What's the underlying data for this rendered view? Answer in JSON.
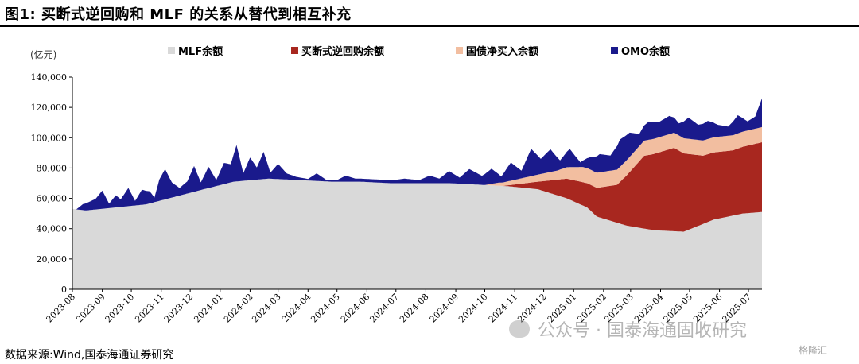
{
  "figure": {
    "title": "图1:  买断式逆回购和 MLF 的关系从替代到相互补充",
    "unit": "(亿元)",
    "source": "数据来源:Wind,国泰海通证券研究",
    "watermark": "公众号 · 国泰海通固收研究",
    "logo_text": "格隆汇"
  },
  "colors": {
    "mlf": "#d9d9d9",
    "outright": "#a8271f",
    "treasury": "#f2bea0",
    "omo": "#1a1a8c"
  },
  "chart_data": {
    "type": "area",
    "stacked": true,
    "ylabel": "(亿元)",
    "ylim": [
      0,
      140000
    ],
    "yticks": [
      0,
      20000,
      40000,
      60000,
      80000,
      100000,
      120000,
      140000
    ],
    "ytick_labels": [
      "0",
      "20,000",
      "40,000",
      "60,000",
      "80,000",
      "100,000",
      "120,000",
      "140,000"
    ],
    "xticks": [
      "2023-08",
      "2023-09",
      "2023-10",
      "2023-11",
      "2023-12",
      "2024-01",
      "2024-02",
      "2024-03",
      "2024-04",
      "2024-05",
      "2024-06",
      "2024-07",
      "2024-08",
      "2024-09",
      "2024-10",
      "2024-11",
      "2024-12",
      "2025-01",
      "2025-02",
      "2025-03",
      "2025-04",
      "2025-05",
      "2025-06",
      "2025-07"
    ],
    "x_start": "2023-08-01",
    "x_end": "2025-07-15",
    "legend_placement": "top",
    "series": [
      {
        "name": "MLF余额",
        "key": "mlf",
        "x": [
          "2023-08-01",
          "2023-08-15",
          "2023-09-15",
          "2023-10-16",
          "2023-11-15",
          "2023-12-15",
          "2024-01-15",
          "2024-02-20",
          "2024-03-25",
          "2024-04-25",
          "2024-05-25",
          "2024-06-25",
          "2024-07-25",
          "2024-08-26",
          "2024-09-25",
          "2024-10-25",
          "2024-11-25",
          "2024-12-25",
          "2025-01-15",
          "2025-01-25",
          "2025-02-25",
          "2025-03-25",
          "2025-04-25",
          "2025-05-26",
          "2025-06-25",
          "2025-07-15"
        ],
        "values": [
          53000,
          52000,
          54000,
          56000,
          61000,
          66000,
          71000,
          73000,
          72000,
          71000,
          71000,
          70000,
          70000,
          70000,
          69000,
          68000,
          66000,
          60000,
          54000,
          48000,
          42000,
          39000,
          38000,
          46000,
          50000,
          51000
        ]
      },
      {
        "name": "买断式逆回购余额",
        "key": "outright",
        "x": [
          "2023-08-01",
          "2024-10-20",
          "2024-10-28",
          "2024-11-25",
          "2024-12-25",
          "2025-01-15",
          "2025-02-15",
          "2025-03-15",
          "2025-04-15",
          "2025-05-15",
          "2025-06-15",
          "2025-07-15"
        ],
        "values": [
          0,
          0,
          1000,
          5000,
          13000,
          16000,
          25000,
          48000,
          55000,
          45000,
          43000,
          46000
        ]
      },
      {
        "name": "国债净买入余额",
        "key": "treasury",
        "x": [
          "2023-08-01",
          "2024-10-01",
          "2024-10-15",
          "2024-11-15",
          "2024-12-15",
          "2025-01-10",
          "2025-02-15",
          "2025-03-15",
          "2025-04-15",
          "2025-05-15",
          "2025-06-15",
          "2025-07-15"
        ],
        "values": [
          0,
          0,
          2000,
          4000,
          6000,
          10000,
          10000,
          10000,
          10000,
          10000,
          10000,
          10000
        ]
      },
      {
        "name": "OMO余额",
        "key": "omo",
        "x": [
          "2023-08-01",
          "2023-08-05",
          "2023-08-12",
          "2023-08-25",
          "2023-09-01",
          "2023-09-08",
          "2023-09-15",
          "2023-09-20",
          "2023-09-28",
          "2023-10-05",
          "2023-10-12",
          "2023-10-20",
          "2023-10-25",
          "2023-10-30",
          "2023-11-05",
          "2023-11-12",
          "2023-11-20",
          "2023-11-28",
          "2023-12-05",
          "2023-12-12",
          "2023-12-20",
          "2023-12-28",
          "2024-01-05",
          "2024-01-12",
          "2024-01-18",
          "2024-01-25",
          "2024-02-01",
          "2024-02-08",
          "2024-02-15",
          "2024-02-22",
          "2024-03-01",
          "2024-03-10",
          "2024-03-20",
          "2024-04-01",
          "2024-04-10",
          "2024-04-20",
          "2024-05-01",
          "2024-05-10",
          "2024-05-20",
          "2024-06-01",
          "2024-06-15",
          "2024-06-28",
          "2024-07-10",
          "2024-07-25",
          "2024-08-05",
          "2024-08-15",
          "2024-08-25",
          "2024-09-05",
          "2024-09-15",
          "2024-09-28",
          "2024-10-08",
          "2024-10-18",
          "2024-10-28",
          "2024-11-08",
          "2024-11-18",
          "2024-11-28",
          "2024-12-08",
          "2024-12-18",
          "2024-12-28",
          "2025-01-08",
          "2025-01-18",
          "2025-01-28",
          "2025-02-08",
          "2025-02-18",
          "2025-02-28",
          "2025-03-10",
          "2025-03-20",
          "2025-03-30",
          "2025-04-10",
          "2025-04-20",
          "2025-04-30",
          "2025-05-10",
          "2025-05-20",
          "2025-05-30",
          "2025-06-10",
          "2025-06-20",
          "2025-06-30",
          "2025-07-08",
          "2025-07-15"
        ],
        "values": [
          0,
          0,
          4000,
          7000,
          12000,
          3000,
          8000,
          5000,
          12000,
          3000,
          10000,
          8000,
          3000,
          14000,
          20000,
          10000,
          5000,
          8000,
          17000,
          5000,
          14000,
          4000,
          14000,
          12000,
          24000,
          5000,
          15000,
          8000,
          18000,
          4000,
          10000,
          4000,
          2000,
          1000,
          5000,
          1000,
          1000,
          4000,
          2000,
          2000,
          2000,
          2000,
          3000,
          2000,
          5000,
          3000,
          8000,
          4000,
          10000,
          6000,
          10000,
          4000,
          12000,
          5000,
          18000,
          10000,
          15000,
          6000,
          12000,
          3000,
          8000,
          12000,
          10000,
          18000,
          16000,
          8000,
          12000,
          10000,
          12000,
          8000,
          14000,
          10000,
          12000,
          8000,
          6000,
          12000,
          6000,
          8000,
          19000
        ]
      }
    ]
  }
}
